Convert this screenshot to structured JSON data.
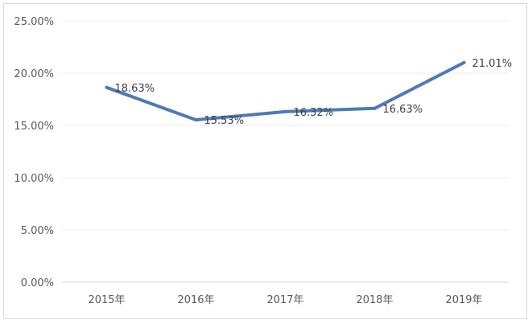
{
  "chart_data": {
    "type": "line",
    "categories": [
      "2015年",
      "2016年",
      "2017年",
      "2018年",
      "2019年"
    ],
    "series": [
      {
        "values": [
          18.63,
          15.53,
          16.32,
          16.63,
          21.01
        ],
        "color": "#4e7ab5"
      }
    ],
    "data_labels": [
      "18.63%",
      "15.53%",
      "16.32%",
      "16.63%",
      "21.01%"
    ],
    "y_ticks": [
      "0.00%",
      "5.00%",
      "10.00%",
      "15.00%",
      "20.00%",
      "25.00%"
    ],
    "ylim": [
      0,
      25
    ],
    "grid": true,
    "legend": "none"
  }
}
